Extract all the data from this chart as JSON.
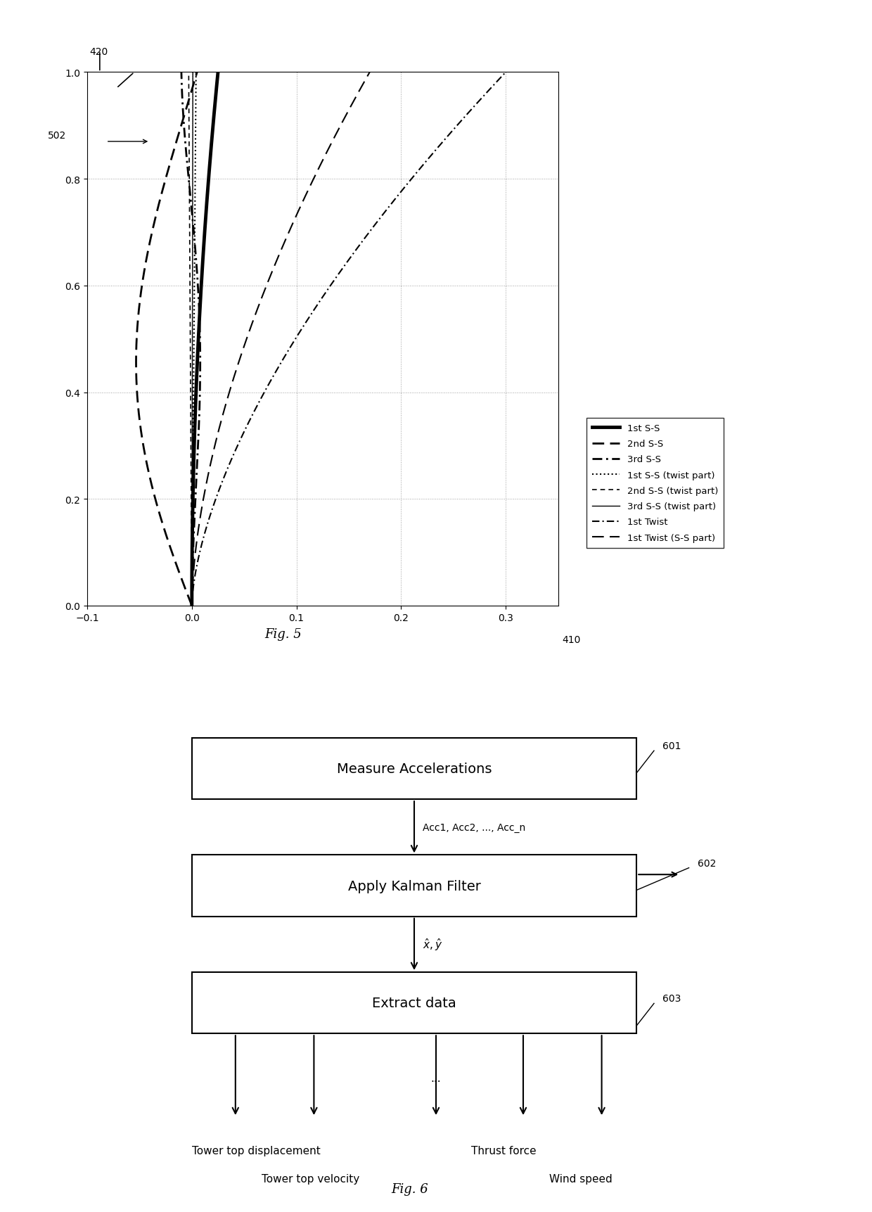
{
  "fig5_xlim": [
    -0.1,
    0.35
  ],
  "fig5_ylim": [
    0.0,
    1.0
  ],
  "fig5_xticks": [
    -0.1,
    0,
    0.1,
    0.2,
    0.3
  ],
  "fig5_yticks": [
    0,
    0.2,
    0.4,
    0.6,
    0.8,
    1.0
  ],
  "fig5_label": "Fig. 5",
  "fig5_label_420": "420",
  "fig5_label_502": "502",
  "fig5_label_410": "410",
  "fig6_label": "Fig. 6",
  "bg_color": "#ffffff",
  "legend_labels": [
    "1st S-S",
    "2nd S-S",
    "3rd S-S",
    "1st S-S (twist part)",
    "2nd S-S (twist part)",
    "3rd S-S (twist part)",
    "1st Twist",
    "1st Twist (S-S part)"
  ]
}
